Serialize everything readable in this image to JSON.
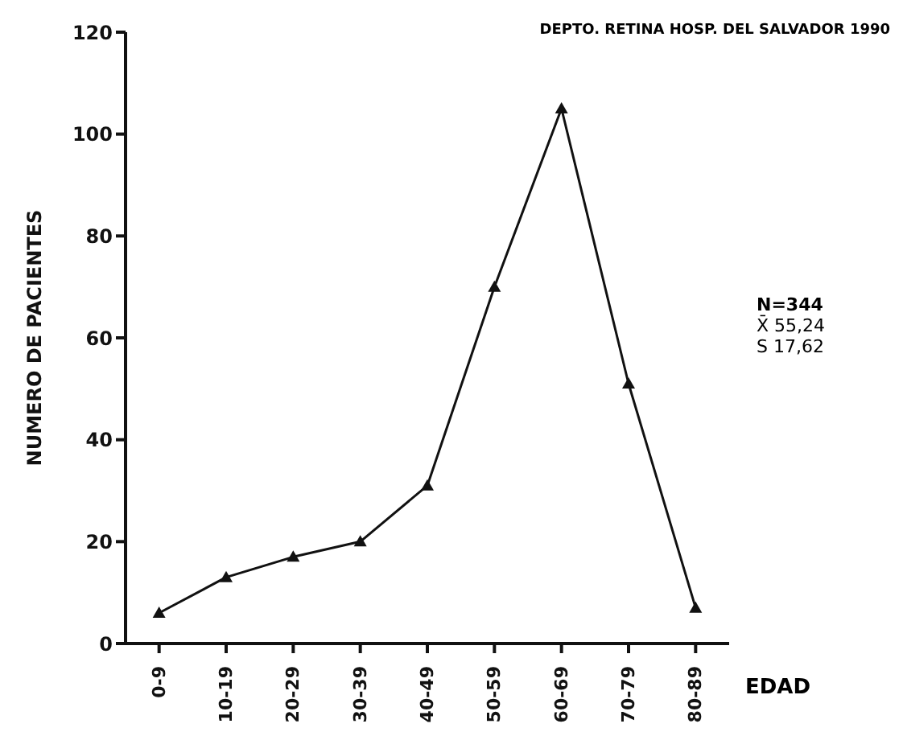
{
  "chart_data": {
    "type": "line",
    "xlabel": "EDAD",
    "ylabel": "NUMERO DE PACIENTES",
    "annotations": [
      "DEPTO. RETINA HOSP. DEL SALVADOR 1990",
      "N=344",
      "X̄ 55,24",
      "S 17,62"
    ],
    "categories": [
      "0-9",
      "10-19",
      "20-29",
      "30-39",
      "40-49",
      "50-59",
      "60-69",
      "70-79",
      "80-89"
    ],
    "series": [
      {
        "color": "#111111",
        "values": [
          6,
          13,
          17,
          20,
          31,
          70,
          105,
          51,
          7
        ]
      }
    ],
    "ylim": [
      0,
      120
    ],
    "yticks": [
      0,
      20,
      40,
      60,
      80,
      100,
      120
    ],
    "grid": false,
    "legend": false,
    "marker": "triangle",
    "line_style": "solid"
  }
}
